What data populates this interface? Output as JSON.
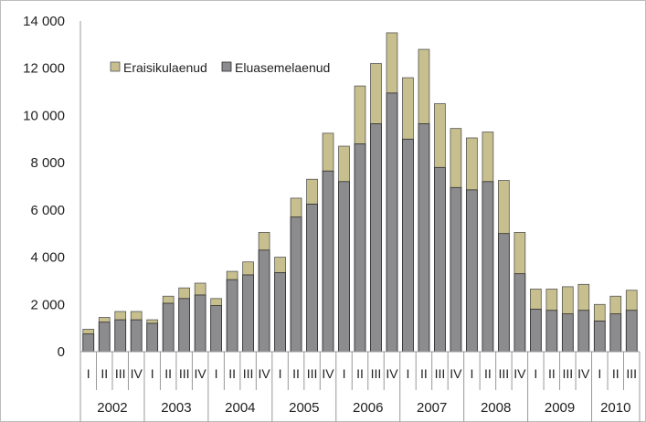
{
  "chart_data": {
    "type": "bar",
    "stacked": false,
    "overlapped": true,
    "ylim": [
      0,
      14000
    ],
    "yticks": [
      0,
      2000,
      4000,
      6000,
      8000,
      10000,
      12000,
      14000
    ],
    "ytick_labels": [
      "0",
      "2 000",
      "4 000",
      "6 000",
      "8 000",
      "10 000",
      "12 000",
      "14 000"
    ],
    "grid": false,
    "legend_position": "top-left",
    "years": [
      {
        "label": "2002",
        "quarters": 4
      },
      {
        "label": "2003",
        "quarters": 4
      },
      {
        "label": "2004",
        "quarters": 4
      },
      {
        "label": "2005",
        "quarters": 4
      },
      {
        "label": "2006",
        "quarters": 4
      },
      {
        "label": "2007",
        "quarters": 4
      },
      {
        "label": "2008",
        "quarters": 4
      },
      {
        "label": "2009",
        "quarters": 4
      },
      {
        "label": "2010",
        "quarters": 3
      }
    ],
    "quarter_labels": [
      "I",
      "II",
      "III",
      "IV"
    ],
    "categories": [
      "2002 I",
      "2002 II",
      "2002 III",
      "2002 IV",
      "2003 I",
      "2003 II",
      "2003 III",
      "2003 IV",
      "2004 I",
      "2004 II",
      "2004 III",
      "2004 IV",
      "2005 I",
      "2005 II",
      "2005 III",
      "2005 IV",
      "2006 I",
      "2006 II",
      "2006 III",
      "2006 IV",
      "2007 I",
      "2007 II",
      "2007 III",
      "2007 IV",
      "2008 I",
      "2008 II",
      "2008 III",
      "2008 IV",
      "2009 I",
      "2009 II",
      "2009 III",
      "2009 IV",
      "2010 I",
      "2010 II",
      "2010 III"
    ],
    "series": [
      {
        "name": "Eraisikulaenud",
        "color": "#c8bf8f",
        "values": [
          950,
          1450,
          1700,
          1700,
          1350,
          2350,
          2700,
          2900,
          2250,
          3400,
          3800,
          5050,
          4000,
          6500,
          7300,
          9250,
          8700,
          11250,
          12200,
          13500,
          11600,
          12800,
          10500,
          9450,
          9050,
          9300,
          7250,
          5050,
          2650,
          2650,
          2750,
          2850,
          2000,
          2350,
          2600
        ]
      },
      {
        "name": "Eluasemelaenud",
        "color": "#8c8c8e",
        "values": [
          750,
          1250,
          1350,
          1350,
          1200,
          2050,
          2250,
          2400,
          1950,
          3050,
          3250,
          4300,
          3350,
          5700,
          6250,
          7650,
          7200,
          8800,
          9650,
          10950,
          9000,
          9650,
          7800,
          6950,
          6850,
          7200,
          5000,
          3300,
          1800,
          1750,
          1600,
          1750,
          1300,
          1600,
          1750
        ]
      }
    ]
  }
}
